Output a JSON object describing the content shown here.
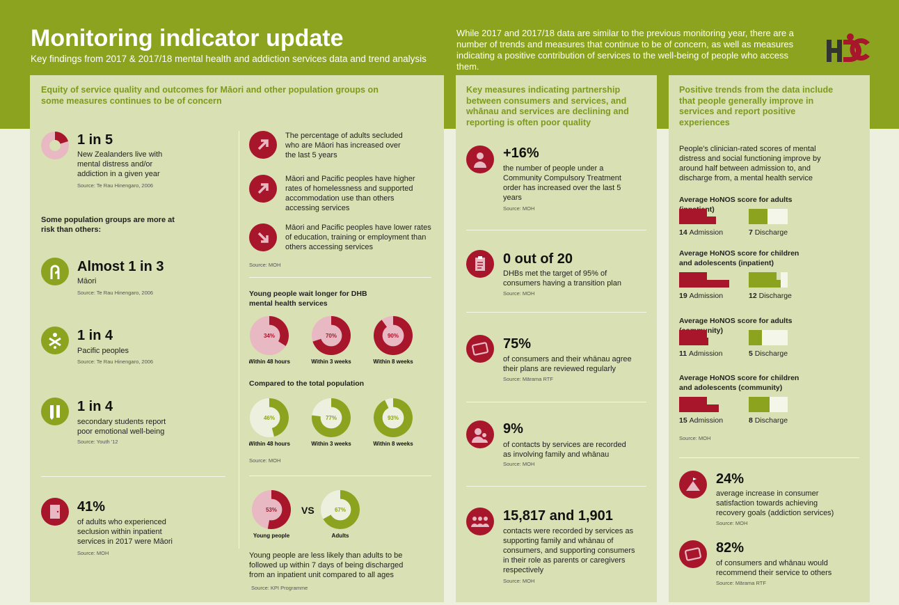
{
  "header": {
    "title": "Monitoring indicator update",
    "subtitle": "Key findings from 2017 & 2017/18 mental health and addiction services data and trend analysis",
    "intro": "While 2017 and 2017/18 data are similar to the previous monitoring year, there are a number of trends and measures that continue to be of concern, as well as measures indicating a positive contribution of services to the well-being of people who access them.",
    "logo": "HDC"
  },
  "equity": {
    "heading": "Equity of service quality and outcomes for Māori and other population groups on some measures continues to be of concern",
    "one_in_five": {
      "value": "1 in 5",
      "text": "New Zealanders live with mental distress and/or addiction in a given year",
      "source": "Source: Te Rau Hinengaro, 2006"
    },
    "risk_heading": "Some population groups are more at risk than others:",
    "maori": {
      "value": "Almost 1 in 3",
      "text": "Māori",
      "source": "Source: Te Rau Hinengaro, 2006"
    },
    "pacific": {
      "value": "1 in 4",
      "text": "Pacific peoples",
      "source": "Source: Te Rau Hinengaro, 2006"
    },
    "students": {
      "value": "1 in 4",
      "text": "secondary students report poor emotional well-being",
      "source": "Source: Youth '12"
    },
    "seclusion": {
      "value": "41%",
      "text": "of adults who experienced seclusion within inpatient services in 2017 were Māori",
      "source": "Source: MOH"
    },
    "trends": [
      {
        "text": "The percentage of adults secluded who are Māori has increased over the last 5 years"
      },
      {
        "text": "Māori and Pacific peoples have higher rates of homelessness and supported accommodation use than others accessing services"
      },
      {
        "text": "Māori and Pacific peoples have lower rates of education, training or employment than others accessing services"
      }
    ],
    "trends_source": "Source: MOH",
    "young_wait": {
      "heading": "Young people wait longer for DHB mental health services",
      "items": [
        {
          "pct": "34%",
          "value": 34,
          "label": "Within 48 hours"
        },
        {
          "pct": "70%",
          "value": 70,
          "label": "Within 3 weeks"
        },
        {
          "pct": "90%",
          "value": 90,
          "label": "Within 8 weeks"
        }
      ]
    },
    "total_pop": {
      "heading": "Compared to the total population",
      "items": [
        {
          "pct": "46%",
          "value": 46,
          "label": "Within 48 hours"
        },
        {
          "pct": "77%",
          "value": 77,
          "label": "Within 3 weeks"
        },
        {
          "pct": "93%",
          "value": 93,
          "label": "Within 8 weeks"
        }
      ],
      "source": "Source: MOH"
    },
    "followup": {
      "young": {
        "pct": "53%",
        "value": 53,
        "label": "Young people"
      },
      "vs": "VS",
      "adults": {
        "pct": "67%",
        "value": 67,
        "label": "Adults"
      },
      "text": "Young people are less likely than adults to be followed up within 7 days of being discharged from an inpatient unit compared to all ages",
      "source": "Source: KPI Programme"
    }
  },
  "partnership": {
    "heading": "Key measures indicating partnership between consumers and services, and whānau and services are declining and reporting is often poor quality",
    "items": [
      {
        "value": "+16%",
        "text": "the number of people under a Community Compulsory Treatment order has increased over the last 5 years",
        "source": "Source: MOH"
      },
      {
        "value": "0 out of 20",
        "text": "DHBs met the target of 95% of consumers having a transition plan",
        "source": "Source: MOH"
      },
      {
        "value": "75%",
        "text": "of consumers and their whānau agree their plans are reviewed regularly",
        "source": "Source: Mārama RTF"
      },
      {
        "value": "9%",
        "text": "of contacts by services are recorded as involving family and whānau",
        "source": "Source: MOH"
      },
      {
        "value": "15,817 and 1,901",
        "text": "contacts were recorded by services as supporting family and whānau of consumers, and supporting consumers in their role as parents or caregivers respectively",
        "source": "Source: MOH"
      }
    ]
  },
  "positive": {
    "heading": "Positive trends from the data include that people generally improve in services and report positive experiences",
    "intro": "People's clinician-rated scores of mental distress and social functioning improve by around half between admission to, and discharge from, a mental health service",
    "honos": [
      {
        "title": "Average HoNOS score for adults (inpatient)",
        "admission": 14,
        "discharge": 7,
        "admission_label": "Admission",
        "discharge_label": "Discharge"
      },
      {
        "title": "Average HoNOS score for children and adolescents (inpatient)",
        "admission": 19,
        "discharge": 12,
        "admission_label": "Admission",
        "discharge_label": "Discharge"
      },
      {
        "title": "Average HoNOS score for adults (community)",
        "admission": 11,
        "discharge": 5,
        "admission_label": "Admission",
        "discharge_label": "Discharge"
      },
      {
        "title": "Average HoNOS score for children and adolescents (community)",
        "admission": 15,
        "discharge": 8,
        "admission_label": "Admission",
        "discharge_label": "Discharge"
      }
    ],
    "honos_source": "Source: MOH",
    "satisfaction": {
      "value": "24%",
      "text": "average increase in consumer satisfaction towards achieving recovery goals (addiction services)",
      "source": "Source: MOH"
    },
    "recommend": {
      "value": "82%",
      "text": "of consumers and whānau would recommend their service to others",
      "source": "Source: Mārama RTF"
    }
  },
  "colors": {
    "green": "#8ba31e",
    "red": "#a8162c",
    "pink": "#e8b8c3",
    "pale": "#eef0df"
  }
}
